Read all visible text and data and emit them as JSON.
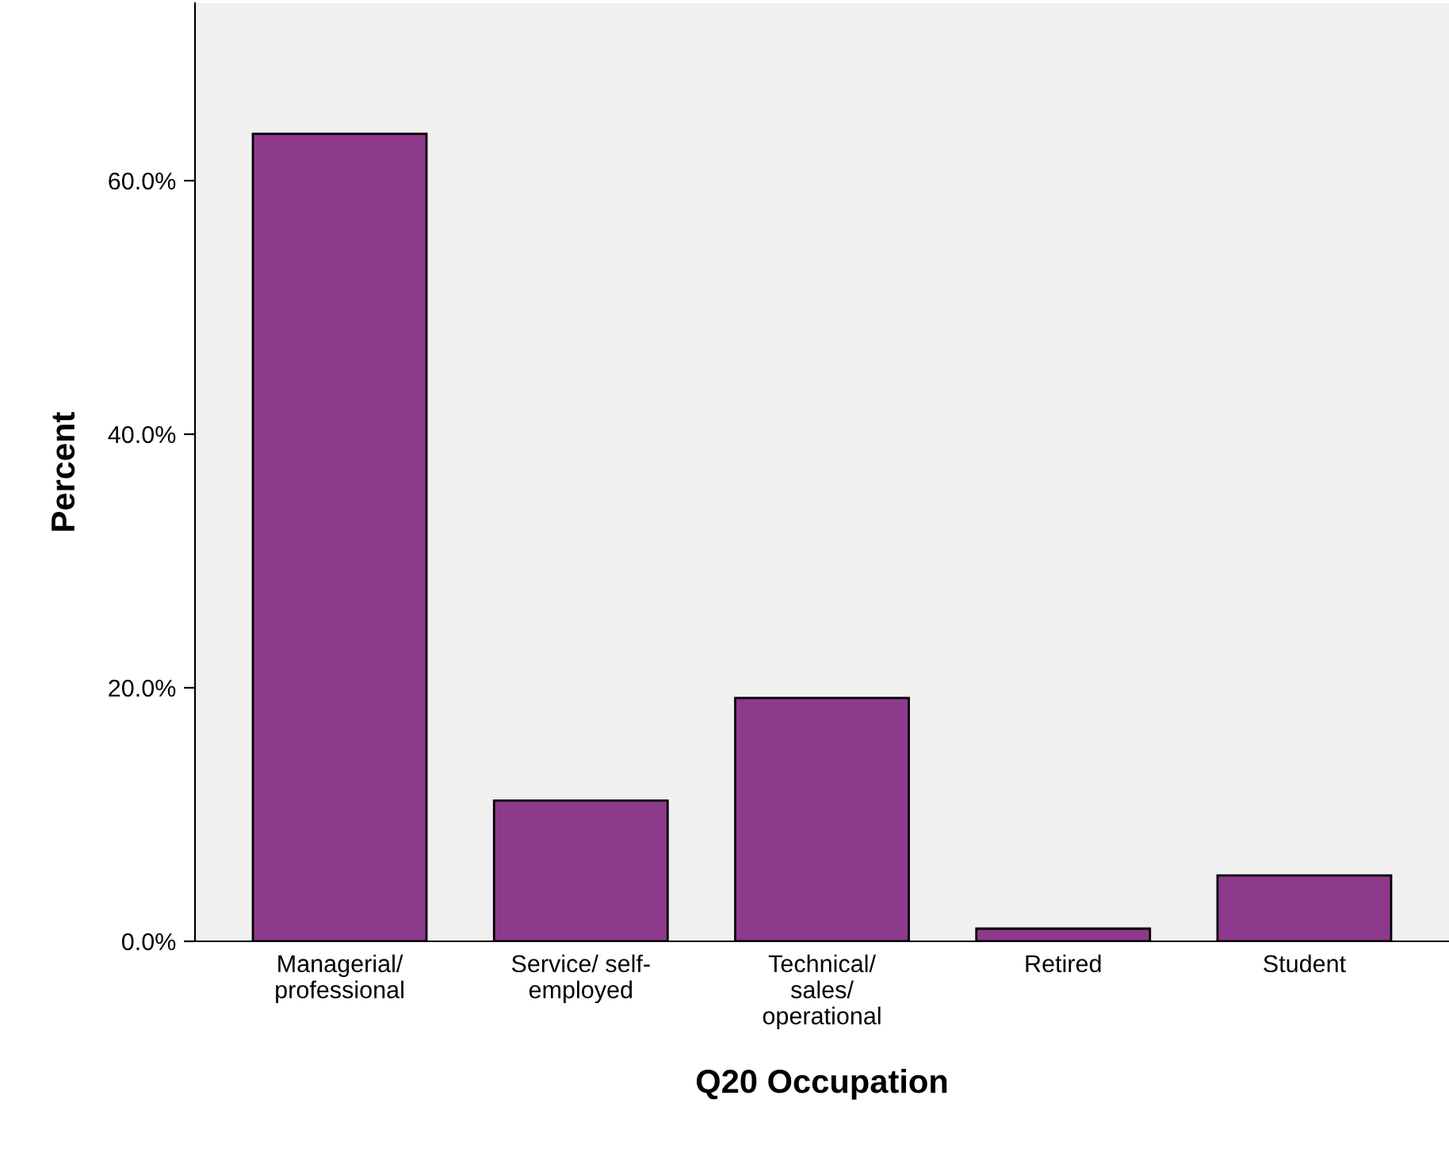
{
  "chart_data": {
    "type": "bar",
    "xlabel": "Q20 Occupation",
    "ylabel": "Percent",
    "categories": [
      "Managerial/\nprofessional",
      "Service/ self-\nemployed",
      "Technical/\nsales/\noperational",
      "Retired",
      "Student"
    ],
    "values": [
      63.7,
      11.1,
      19.2,
      1.0,
      5.2
    ],
    "color": "#8e3a8c",
    "ylim": [
      0,
      74
    ],
    "yticks": [
      {
        "value": 0,
        "label": "0.0%"
      },
      {
        "value": 20,
        "label": "20.0%"
      },
      {
        "value": 40,
        "label": "40.0%"
      },
      {
        "value": 60,
        "label": "60.0%"
      }
    ],
    "grid": false
  }
}
